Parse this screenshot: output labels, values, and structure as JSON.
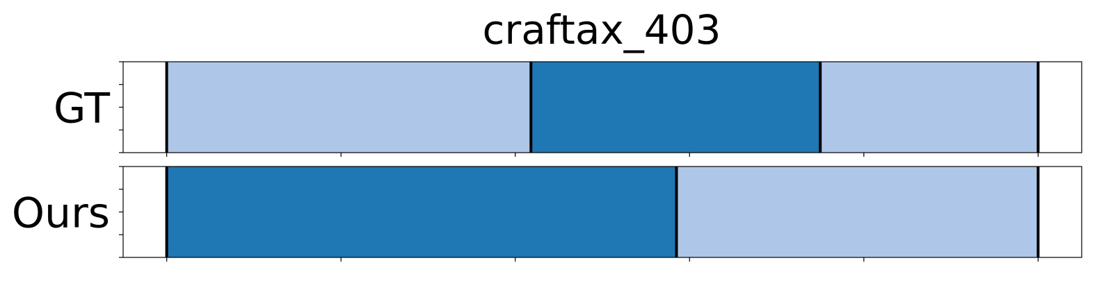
{
  "chart_data": {
    "type": "bar",
    "title": "craftax_403",
    "xlabel": "",
    "ylabel": "",
    "xlim": [
      -5,
      105
    ],
    "grid": false,
    "legend": "none",
    "xticks": [
      0,
      20,
      40,
      60,
      80,
      100
    ],
    "xtick_labels_visible": false,
    "yticks_per_row": [
      0,
      0.25,
      0.5,
      0.75,
      1
    ],
    "colors": {
      "light": "#aec7e8",
      "dark": "#1f77b4",
      "boundary": "#000000"
    },
    "rows": [
      {
        "label": "GT",
        "segments": [
          {
            "start": 0,
            "end": 41.8,
            "color": "light"
          },
          {
            "start": 41.8,
            "end": 75.0,
            "color": "dark"
          },
          {
            "start": 75.0,
            "end": 100,
            "color": "light"
          }
        ],
        "boundaries": [
          0,
          41.8,
          75.0,
          100
        ]
      },
      {
        "label": "Ours",
        "segments": [
          {
            "start": 0,
            "end": 58.5,
            "color": "dark"
          },
          {
            "start": 58.5,
            "end": 100,
            "color": "light"
          }
        ],
        "boundaries": [
          0,
          58.5,
          100
        ]
      }
    ]
  }
}
